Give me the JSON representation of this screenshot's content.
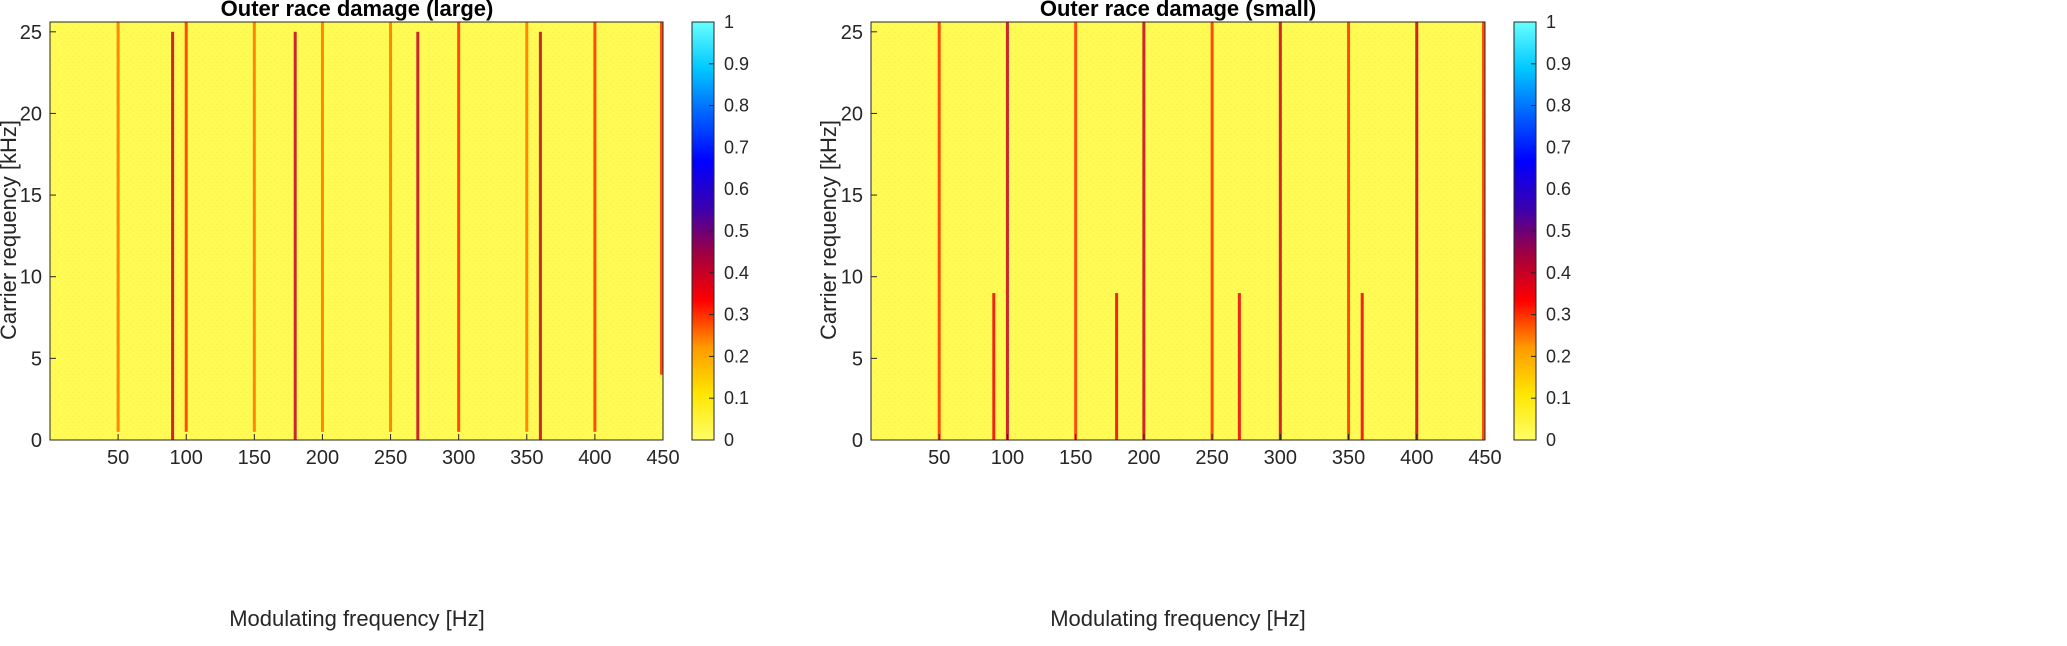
{
  "colors": {
    "background": "#ffff66",
    "colormap": [
      "#ffff66",
      "#ffe500",
      "#ff9900",
      "#ff0000",
      "#a00040",
      "#3a00b0",
      "#0000ff",
      "#0060ff",
      "#00c8ff",
      "#66ffff"
    ]
  },
  "chart_data": [
    {
      "type": "heatmap",
      "title": "Outer race damage (large)",
      "xlabel": "Modulating frequency [Hz]",
      "ylabel": "Carrier requency [kHz]",
      "xlim": [
        0,
        450
      ],
      "ylim": [
        0,
        25.6
      ],
      "xticks": [
        "50",
        "100",
        "150",
        "200",
        "250",
        "300",
        "350",
        "400",
        "450"
      ],
      "yticks": [
        "0",
        "5",
        "10",
        "15",
        "20",
        "25"
      ],
      "colorbar": {
        "range": [
          0,
          1
        ],
        "ticks": [
          "0",
          "0.1",
          "0.2",
          "0.3",
          "0.4",
          "0.5",
          "0.6",
          "0.7",
          "0.8",
          "0.9",
          "1"
        ]
      },
      "background_value": 0.02,
      "stripes": [
        {
          "x": 50,
          "value": 0.25,
          "bands": [
            [
              0.5,
              25.6
            ]
          ]
        },
        {
          "x": 90,
          "value": 0.4,
          "bands": [
            [
              0,
              25
            ]
          ]
        },
        {
          "x": 100,
          "value": 0.3,
          "bands": [
            [
              0.5,
              25.6
            ]
          ]
        },
        {
          "x": 150,
          "value": 0.25,
          "bands": [
            [
              0.5,
              25.6
            ]
          ]
        },
        {
          "x": 180,
          "value": 0.4,
          "bands": [
            [
              0,
              25
            ]
          ]
        },
        {
          "x": 200,
          "value": 0.25,
          "bands": [
            [
              0.5,
              25.6
            ]
          ]
        },
        {
          "x": 250,
          "value": 0.25,
          "bands": [
            [
              0.5,
              25.6
            ]
          ]
        },
        {
          "x": 270,
          "value": 0.4,
          "bands": [
            [
              0,
              25
            ]
          ]
        },
        {
          "x": 300,
          "value": 0.3,
          "bands": [
            [
              0.5,
              25.6
            ]
          ]
        },
        {
          "x": 350,
          "value": 0.25,
          "bands": [
            [
              0.5,
              25.6
            ]
          ]
        },
        {
          "x": 360,
          "value": 0.4,
          "bands": [
            [
              0,
              25
            ]
          ]
        },
        {
          "x": 400,
          "value": 0.3,
          "bands": [
            [
              0.5,
              25.6
            ]
          ]
        },
        {
          "x": 450,
          "value": 0.3,
          "bands": [
            [
              4,
              25.6
            ]
          ]
        }
      ]
    },
    {
      "type": "heatmap",
      "title": "Outer race damage (small)",
      "xlabel": "Modulating frequency [Hz]",
      "ylabel": "Carrier requency [kHz]",
      "xlim": [
        0,
        450
      ],
      "ylim": [
        0,
        25.6
      ],
      "xticks": [
        "50",
        "100",
        "150",
        "200",
        "250",
        "300",
        "350",
        "400",
        "450"
      ],
      "yticks": [
        "0",
        "5",
        "10",
        "15",
        "20",
        "25"
      ],
      "colorbar": {
        "range": [
          0,
          1
        ],
        "ticks": [
          "0",
          "0.1",
          "0.2",
          "0.3",
          "0.4",
          "0.5",
          "0.6",
          "0.7",
          "0.8",
          "0.9",
          "1"
        ]
      },
      "background_value": 0.02,
      "stripes": [
        {
          "x": 50,
          "value": 0.3,
          "bands": [
            [
              0,
              25.6
            ]
          ]
        },
        {
          "x": 90,
          "value": 0.35,
          "bands": [
            [
              0,
              9
            ]
          ]
        },
        {
          "x": 100,
          "value": 0.4,
          "bands": [
            [
              0,
              25.6
            ]
          ]
        },
        {
          "x": 150,
          "value": 0.3,
          "bands": [
            [
              0,
              25.6
            ]
          ]
        },
        {
          "x": 180,
          "value": 0.35,
          "bands": [
            [
              0,
              9
            ]
          ]
        },
        {
          "x": 200,
          "value": 0.4,
          "bands": [
            [
              0,
              25.6
            ]
          ]
        },
        {
          "x": 250,
          "value": 0.3,
          "bands": [
            [
              0,
              25.6
            ]
          ]
        },
        {
          "x": 270,
          "value": 0.35,
          "bands": [
            [
              0,
              9
            ]
          ]
        },
        {
          "x": 300,
          "value": 0.4,
          "bands": [
            [
              0,
              25.6
            ]
          ]
        },
        {
          "x": 350,
          "value": 0.3,
          "bands": [
            [
              0,
              25.6
            ]
          ]
        },
        {
          "x": 360,
          "value": 0.35,
          "bands": [
            [
              0,
              9
            ]
          ]
        },
        {
          "x": 400,
          "value": 0.4,
          "bands": [
            [
              0,
              25.6
            ]
          ]
        },
        {
          "x": 450,
          "value": 0.3,
          "bands": [
            [
              0,
              25.6
            ]
          ]
        }
      ]
    }
  ]
}
